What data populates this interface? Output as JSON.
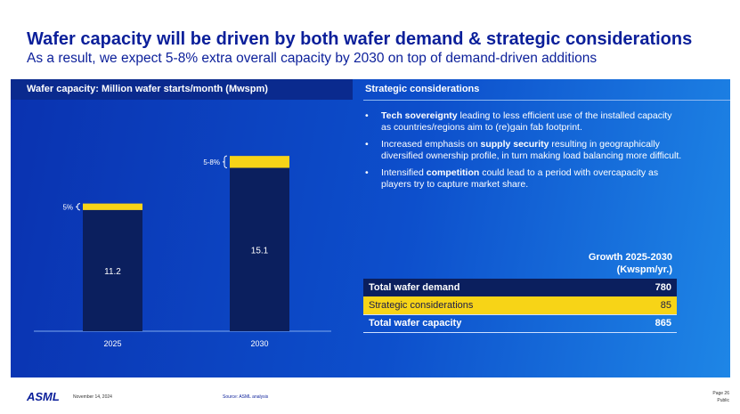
{
  "header": {
    "title": "Wafer capacity will be driven by both wafer demand & strategic considerations",
    "subtitle": "As a result, we expect 5-8% extra overall capacity by 2030 on top of demand-driven additions"
  },
  "chart_data": {
    "type": "stacked-bar",
    "title": "Wafer capacity: Million wafer starts/month (Mwspm)",
    "categories": [
      "2025",
      "2030"
    ],
    "series": [
      {
        "color": "#0b1f5e",
        "values": [
          11.2,
          15.1
        ]
      },
      {
        "color": "#f7d417",
        "values": [
          0.6,
          1.1
        ]
      }
    ],
    "annotations": [
      "5%",
      "5-8%"
    ],
    "ylim": [
      0,
      16.5
    ]
  },
  "strategic": {
    "title": "Strategic considerations",
    "bullets": [
      [
        {
          "text": "Tech sovereignty",
          "bold": true
        },
        {
          "text": " leading to less efficient use of the installed capacity as countries/regions aim to (re)gain fab footprint.",
          "bold": false
        }
      ],
      [
        {
          "text": "Increased emphasis on ",
          "bold": false
        },
        {
          "text": "supply security",
          "bold": true
        },
        {
          "text": " resulting in geographically diversified ownership profile, in turn making load balancing more difficult.",
          "bold": false
        }
      ],
      [
        {
          "text": "Intensified ",
          "bold": false
        },
        {
          "text": "competition",
          "bold": true
        },
        {
          "text": " could lead to a period with overcapacity as players try to capture market share.",
          "bold": false
        }
      ]
    ]
  },
  "table": {
    "header": [
      "Growth 2025-2030",
      "(Kwspm/yr.)"
    ],
    "rows": [
      [
        "Total wafer demand",
        780
      ],
      [
        "Strategic considerations",
        85
      ],
      [
        "Total wafer capacity",
        865
      ]
    ]
  },
  "footer": {
    "logo": "ASML",
    "date": "November 14, 2024",
    "source": "Source: ASML analysis",
    "page": "Page 26",
    "classification": "Public"
  }
}
